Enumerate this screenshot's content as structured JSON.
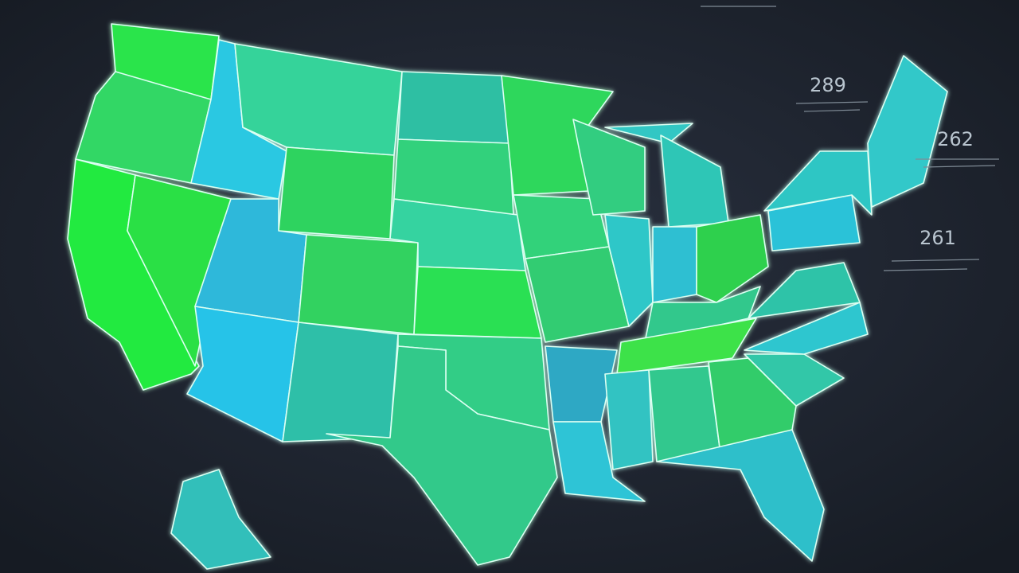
{
  "annotations": [
    "289",
    "262",
    "261"
  ]
}
